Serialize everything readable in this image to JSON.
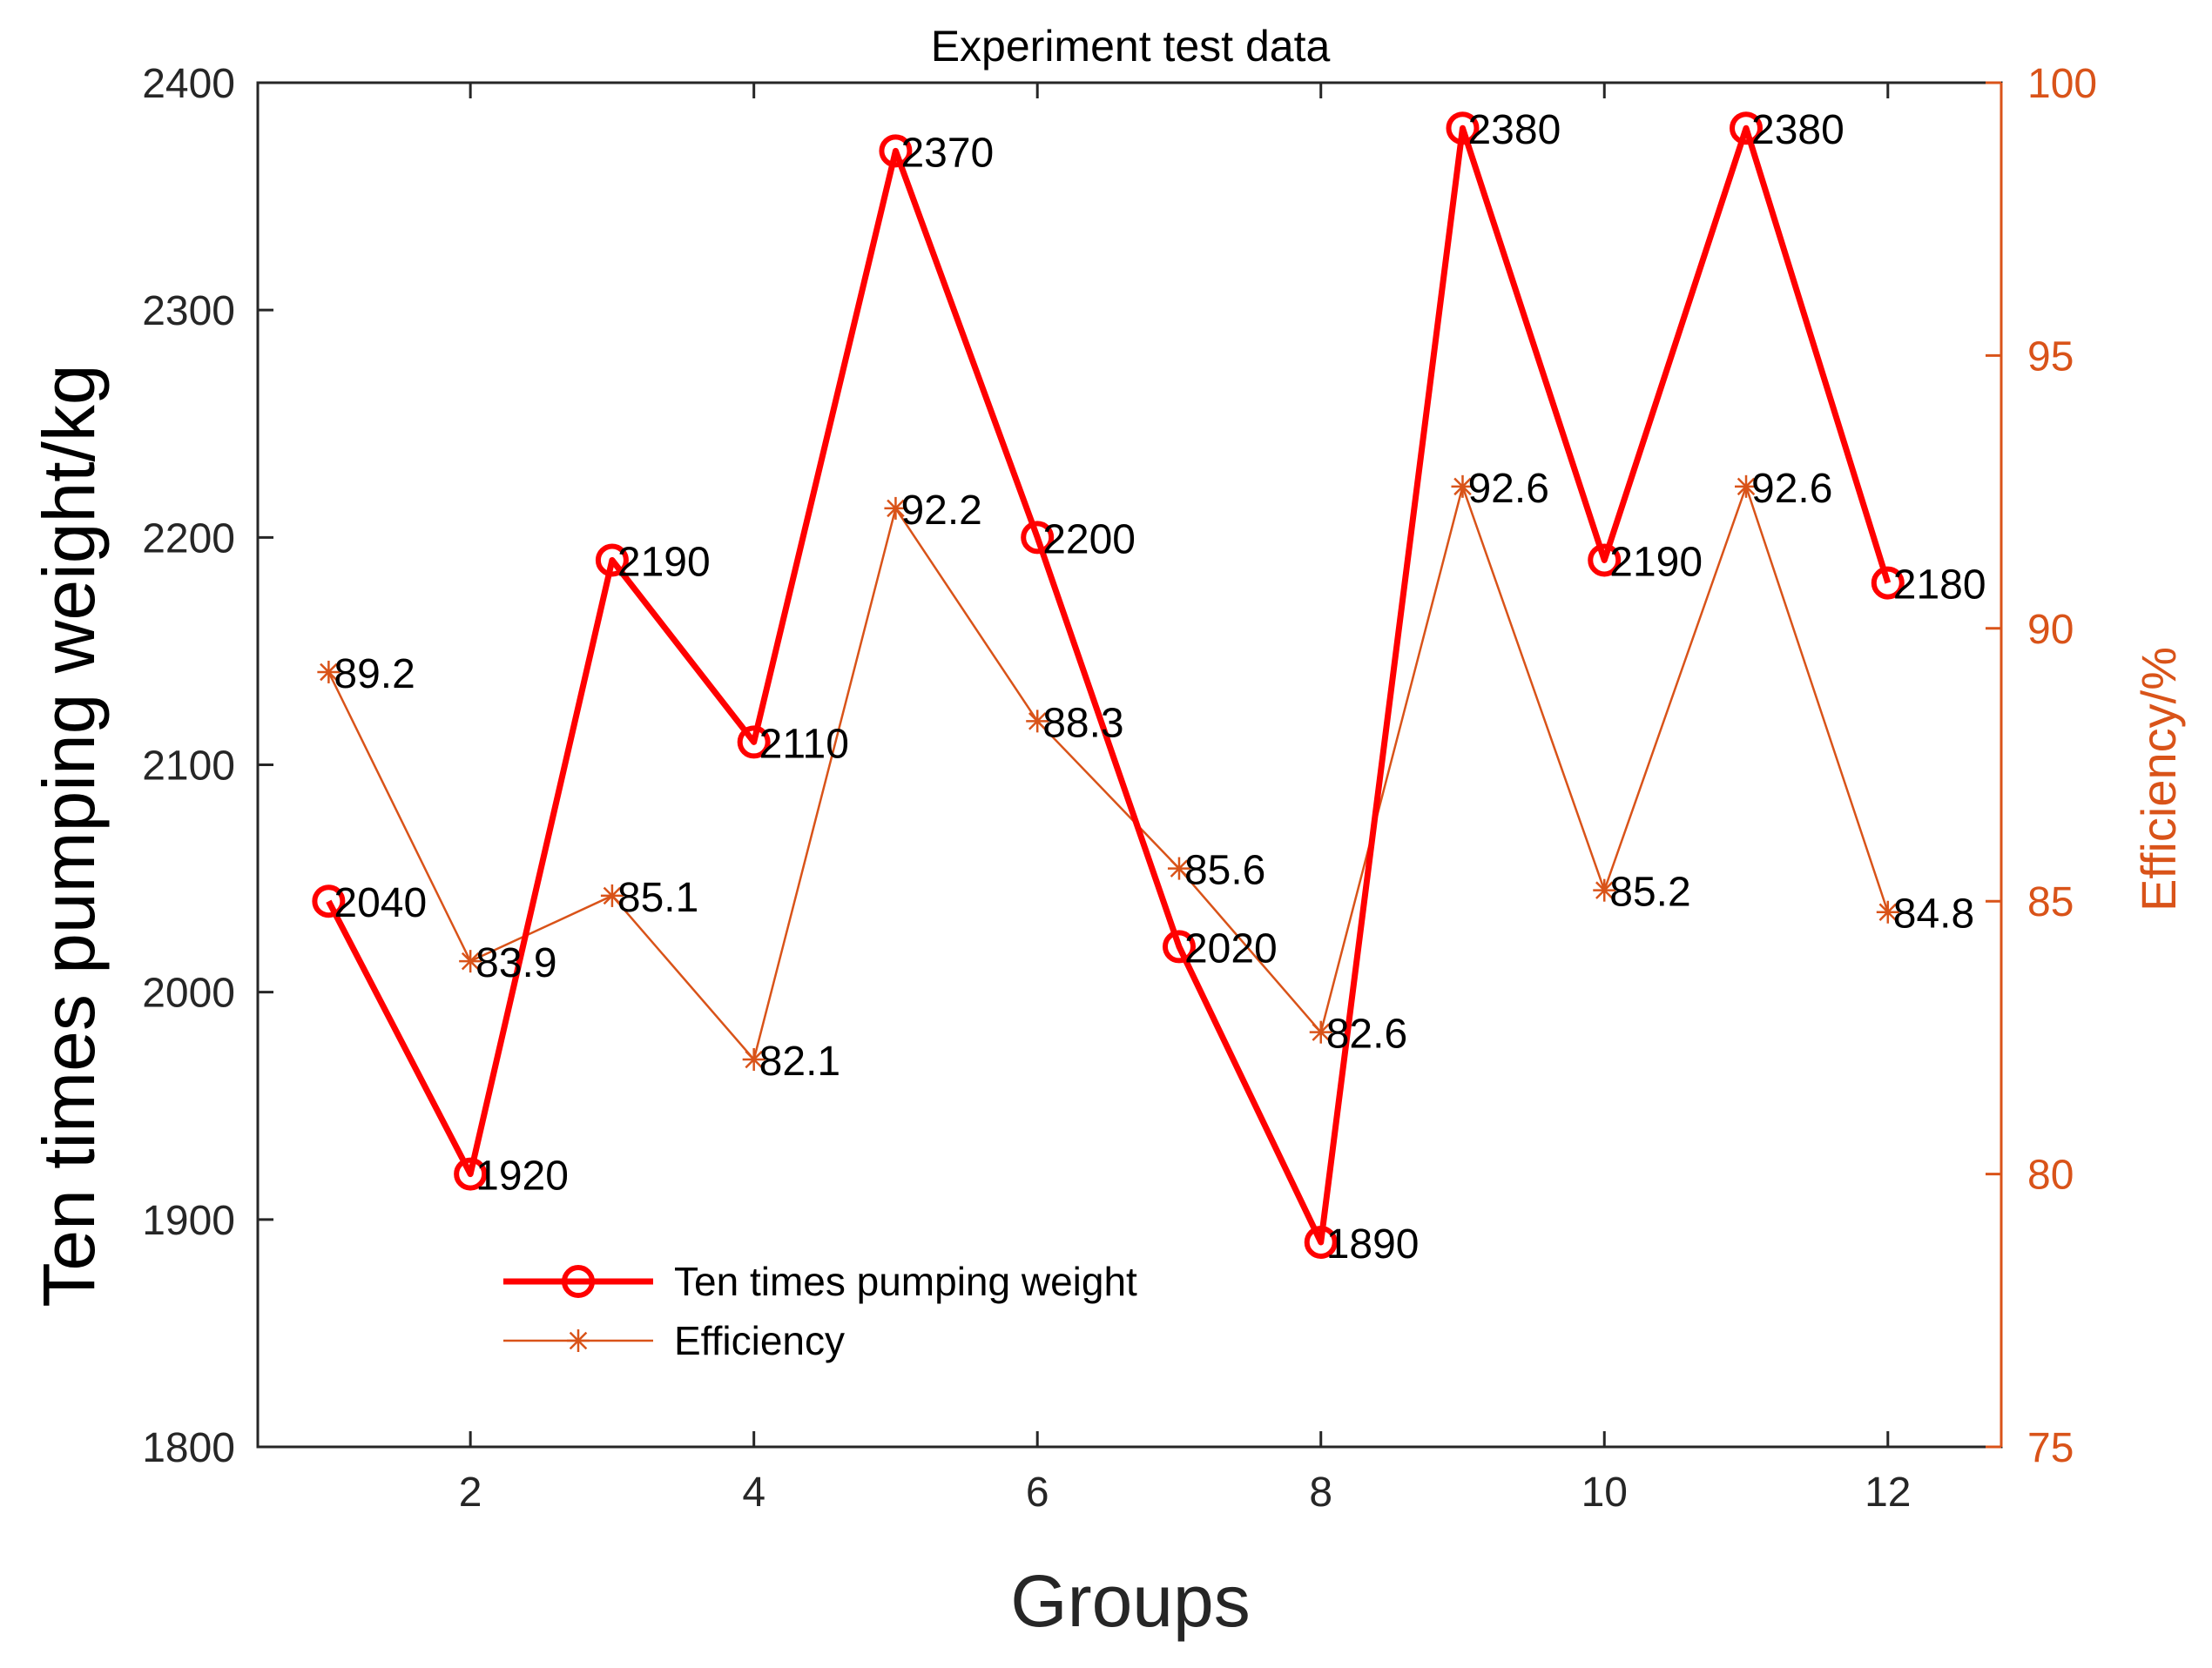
{
  "chart_data": {
    "type": "line",
    "title": "Experiment test data",
    "xlabel": "Groups",
    "ylabel": "Ten times pumping weight/kg",
    "y2label": "Efficiency/%",
    "x": [
      1,
      2,
      3,
      4,
      5,
      6,
      7,
      8,
      9,
      10,
      11,
      12
    ],
    "xlim": [
      0.5,
      12.8
    ],
    "xticks": [
      2,
      4,
      6,
      8,
      10,
      12
    ],
    "ylim": [
      1800,
      2400
    ],
    "yticks": [
      1800,
      1900,
      2000,
      2100,
      2200,
      2300,
      2400
    ],
    "y2lim": [
      75,
      100
    ],
    "y2ticks": [
      75,
      80,
      85,
      90,
      95,
      100
    ],
    "grid": false,
    "legend_location": "lower-left",
    "series": [
      {
        "name": "Ten times pumping weight",
        "axis": "left",
        "marker": "circle",
        "color": "#ff0000",
        "values": [
          2040,
          1920,
          2190,
          2110,
          2370,
          2200,
          2020,
          1890,
          2380,
          2190,
          2380,
          2180
        ],
        "labels": [
          "2040",
          "1920",
          "2190",
          "2110",
          "2370",
          "2200",
          "2020",
          "1890",
          "2380",
          "2190",
          "2380",
          "2180"
        ]
      },
      {
        "name": "Efficiency",
        "axis": "right",
        "marker": "asterisk",
        "color": "#d95319",
        "values": [
          89.2,
          83.9,
          85.1,
          82.1,
          92.2,
          88.3,
          85.6,
          82.6,
          92.6,
          85.2,
          92.6,
          84.8
        ],
        "labels": [
          "89.2",
          "83.9",
          "85.1",
          "82.1",
          "92.2",
          "88.3",
          "85.6",
          "82.6",
          "92.6",
          "85.2",
          "92.6",
          "84.8"
        ]
      }
    ]
  }
}
